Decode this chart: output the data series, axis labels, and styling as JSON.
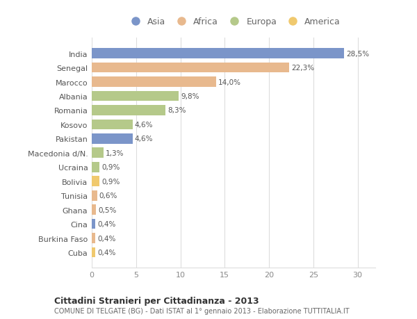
{
  "countries": [
    "India",
    "Senegal",
    "Marocco",
    "Albania",
    "Romania",
    "Kosovo",
    "Pakistan",
    "Macedonia d/N.",
    "Ucraina",
    "Bolivia",
    "Tunisia",
    "Ghana",
    "Cina",
    "Burkina Faso",
    "Cuba"
  ],
  "values": [
    28.5,
    22.3,
    14.0,
    9.8,
    8.3,
    4.6,
    4.6,
    1.3,
    0.9,
    0.9,
    0.6,
    0.5,
    0.4,
    0.4,
    0.4
  ],
  "labels": [
    "28,5%",
    "22,3%",
    "14,0%",
    "9,8%",
    "8,3%",
    "4,6%",
    "4,6%",
    "1,3%",
    "0,9%",
    "0,9%",
    "0,6%",
    "0,5%",
    "0,4%",
    "0,4%",
    "0,4%"
  ],
  "continents": [
    "Asia",
    "Africa",
    "Africa",
    "Europa",
    "Europa",
    "Europa",
    "Asia",
    "Europa",
    "Europa",
    "America",
    "Africa",
    "Africa",
    "Asia",
    "Africa",
    "America"
  ],
  "continent_colors": {
    "Asia": "#7b95c9",
    "Africa": "#e8b98e",
    "Europa": "#b5c98a",
    "America": "#f0c96e"
  },
  "legend_order": [
    "Asia",
    "Africa",
    "Europa",
    "America"
  ],
  "title": "Cittadini Stranieri per Cittadinanza - 2013",
  "subtitle": "COMUNE DI TELGATE (BG) - Dati ISTAT al 1° gennaio 2013 - Elaborazione TUTTITALIA.IT",
  "xlim": [
    0,
    32
  ],
  "xticks": [
    0,
    5,
    10,
    15,
    20,
    25,
    30
  ],
  "bg_color": "#ffffff",
  "grid_color": "#dddddd",
  "bar_height": 0.72
}
